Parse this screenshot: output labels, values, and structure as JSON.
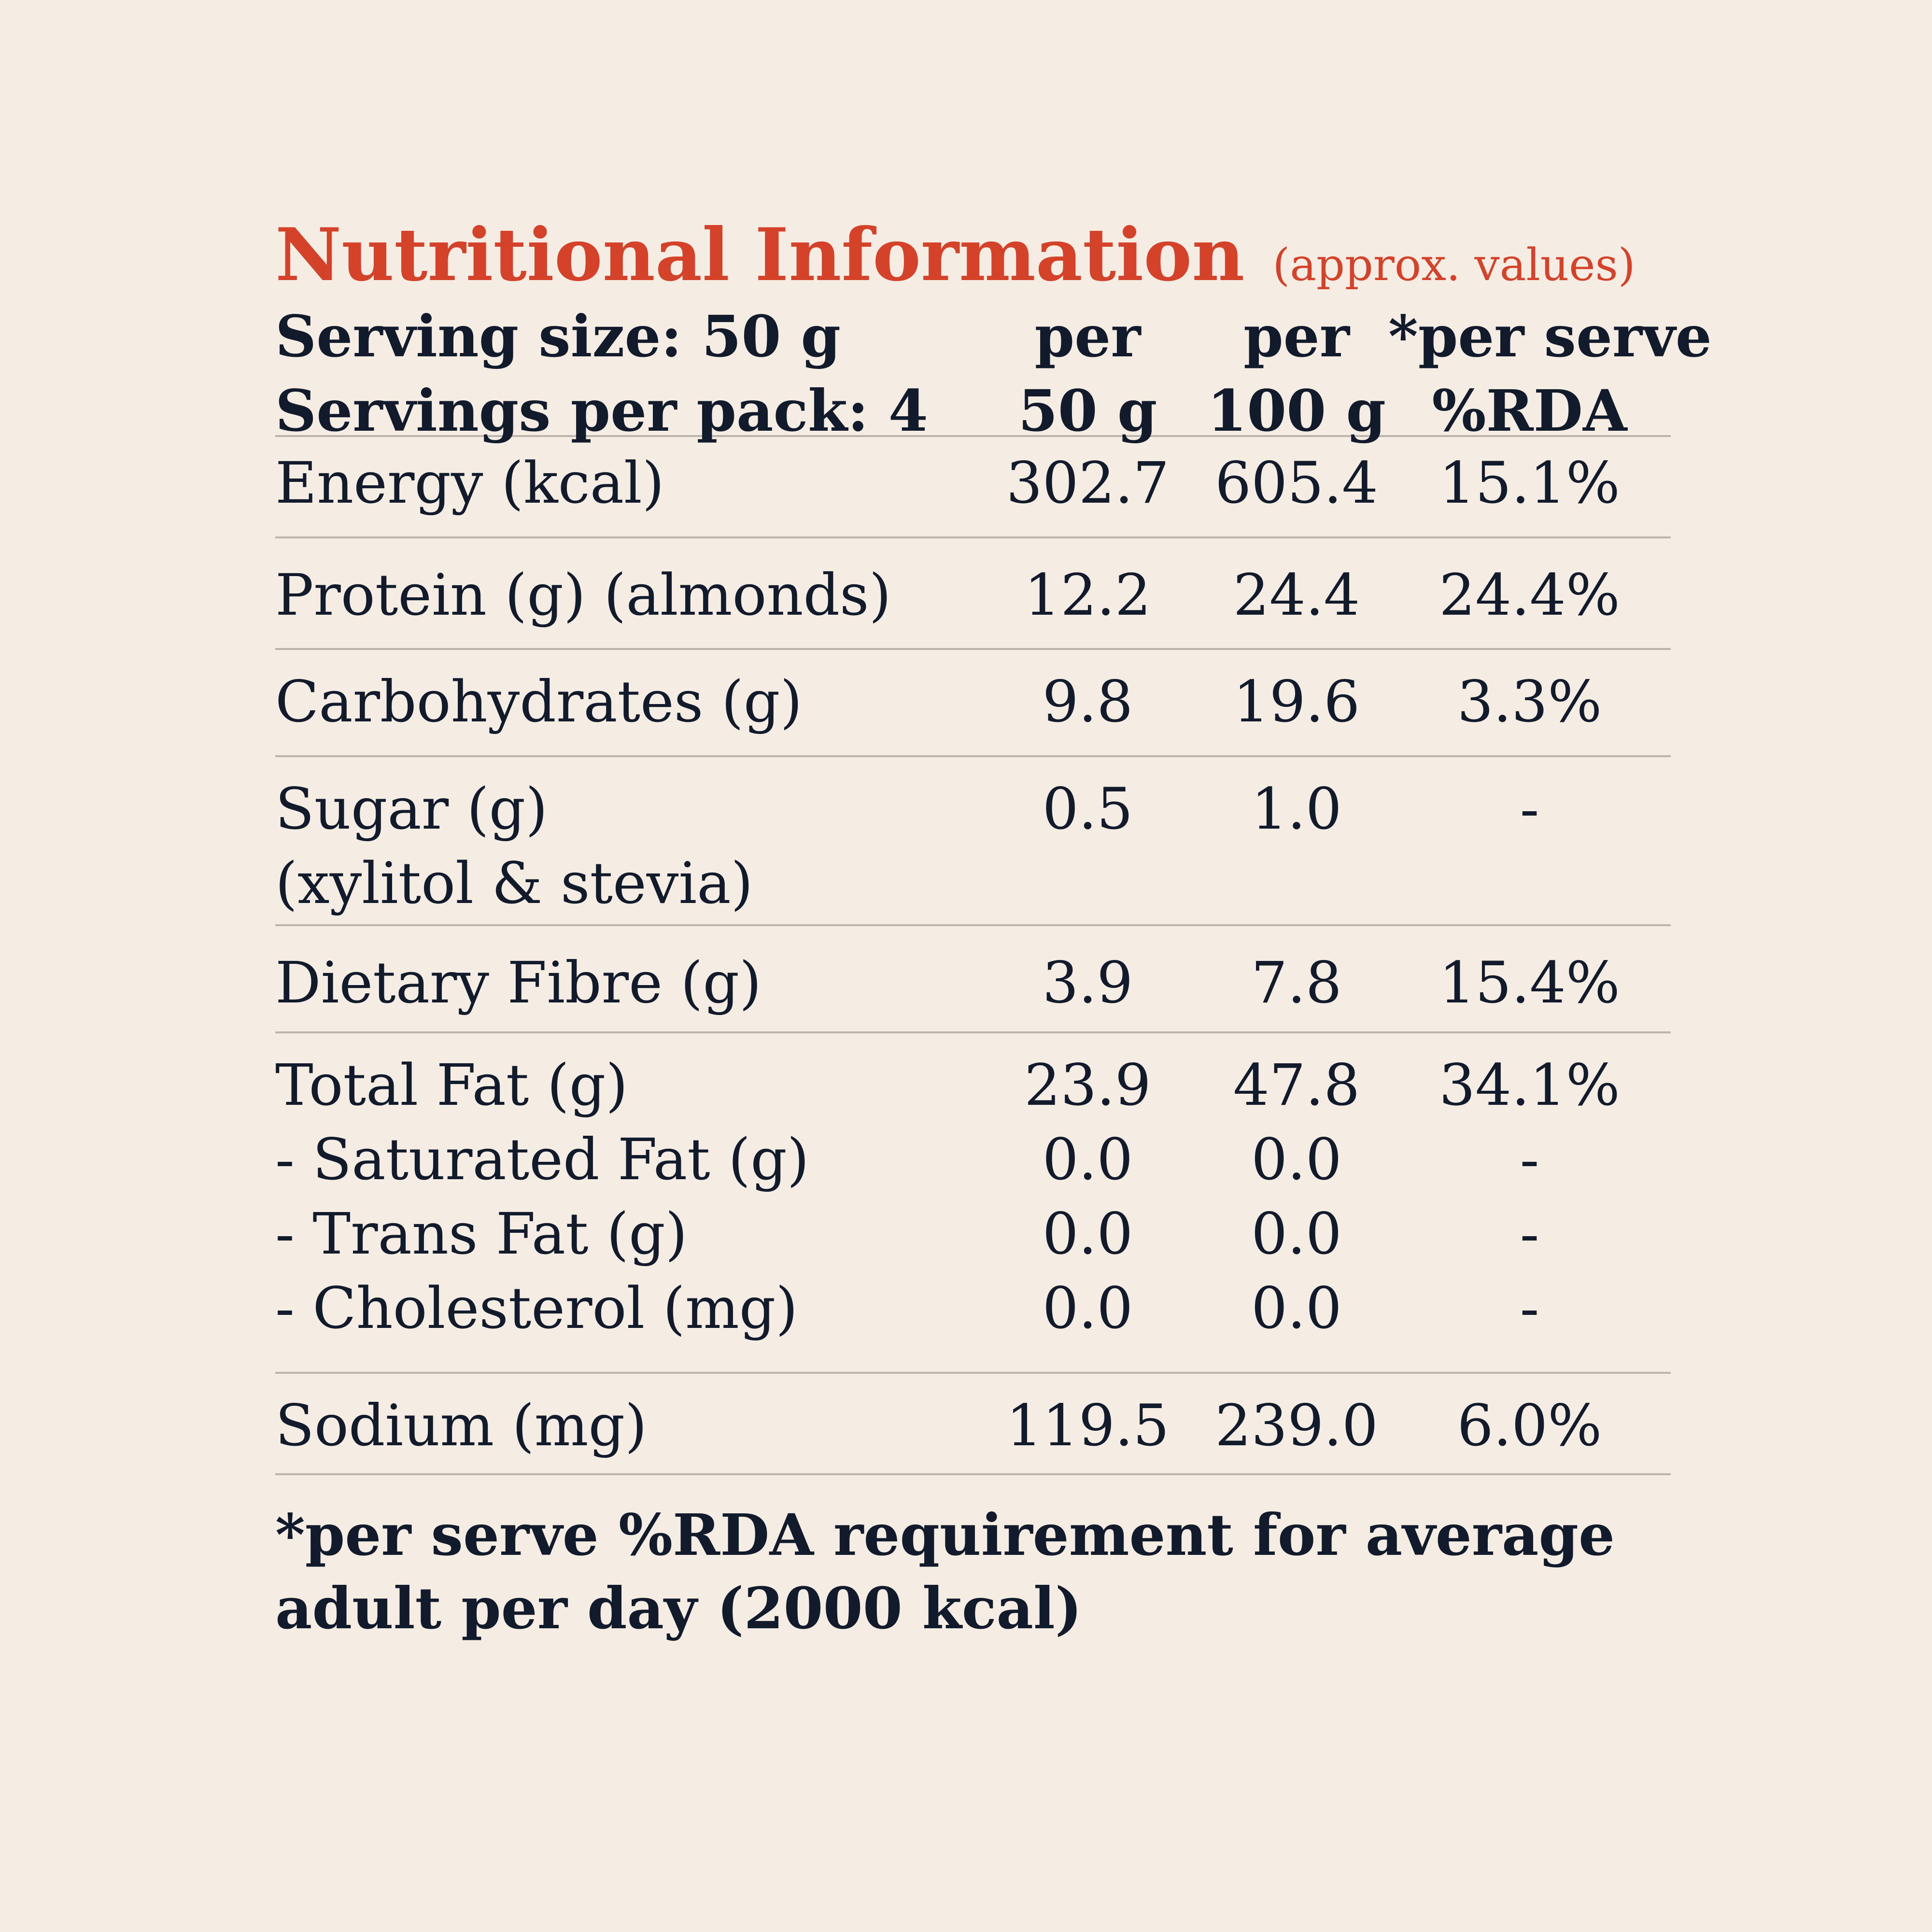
{
  "title": "Nutritional Information",
  "subtitle": "(approx. values)",
  "header": {
    "serving_size": "Serving size: 50 g",
    "servings_per_pack": "Servings per pack: 4",
    "col_a_line1": "per",
    "col_a_line2": "50 g",
    "col_b_line1": "per",
    "col_b_line2": "100 g",
    "col_c_line1": "*per serve",
    "col_c_line2": "%RDA"
  },
  "rows": [
    {
      "label": "Energy (kcal)",
      "per50": "302.7",
      "per100": "605.4",
      "rda": "15.1%"
    },
    {
      "label": "Protein (g) (almonds)",
      "per50": "12.2",
      "per100": "24.4",
      "rda": "24.4%"
    },
    {
      "label": "Carbohydrates (g)",
      "per50": "9.8",
      "per100": "19.6",
      "rda": "3.3%"
    },
    {
      "label": "Sugar (g)",
      "sublabel": "(xylitol & stevia)",
      "per50": "0.5",
      "per100": "1.0",
      "rda": "-"
    },
    {
      "label": "Dietary Fibre (g)",
      "per50": "3.9",
      "per100": "7.8",
      "rda": "15.4%"
    },
    {
      "label": "Total Fat (g)",
      "per50": "23.9",
      "per100": "47.8",
      "rda": "34.1%",
      "sub": [
        {
          "label": "- Saturated Fat (g)",
          "per50": "0.0",
          "per100": "0.0",
          "rda": "-"
        },
        {
          "label": "- Trans Fat (g)",
          "per50": "0.0",
          "per100": "0.0",
          "rda": "-"
        },
        {
          "label": "- Cholesterol (mg)",
          "per50": "0.0",
          "per100": "0.0",
          "rda": "-"
        }
      ]
    },
    {
      "label": "Sodium (mg)",
      "per50": "119.5",
      "per100": "239.0",
      "rda": "6.0%"
    }
  ],
  "footnote": {
    "line1": "*per serve %RDA requirement for average",
    "line2": "adult per day (2000 kcal)"
  }
}
